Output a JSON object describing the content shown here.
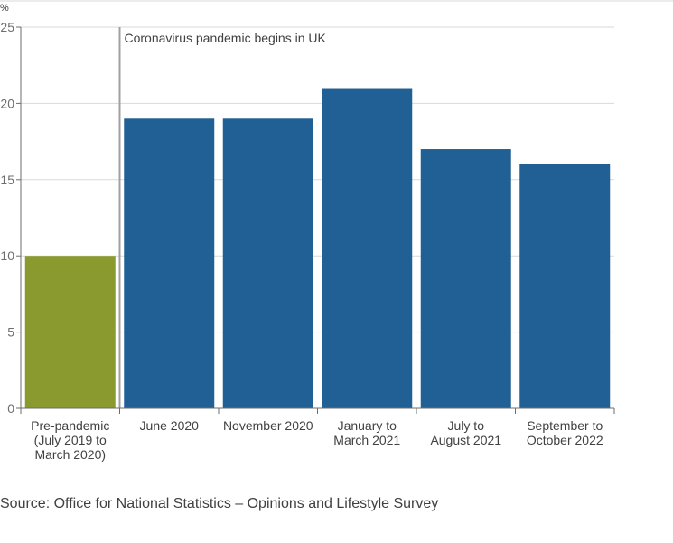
{
  "chart_data": {
    "type": "bar",
    "categories": [
      [
        "Pre-pandemic",
        "(July 2019 to",
        "March 2020)"
      ],
      [
        "June 2020"
      ],
      [
        "November 2020"
      ],
      [
        "January to",
        "March 2021"
      ],
      [
        "July to",
        "August 2021"
      ],
      [
        "September to",
        "October 2022"
      ]
    ],
    "values": [
      10,
      19,
      19,
      21,
      17,
      16
    ],
    "bar_colors": [
      "#8a9a2e",
      "#206095",
      "#206095",
      "#206095",
      "#206095",
      "#206095"
    ],
    "y_unit": "%",
    "ylim": [
      0,
      25
    ],
    "yticks": [
      0,
      5,
      10,
      15,
      20,
      25
    ],
    "grid": true,
    "annotation": {
      "text": "Coronavirus pandemic begins in UK",
      "after_category_index": 0
    },
    "line_color": "#a0a0a0",
    "grid_color": "#d9d9d9"
  },
  "source": "Source: Office for National Statistics – Opinions and Lifestyle Survey"
}
